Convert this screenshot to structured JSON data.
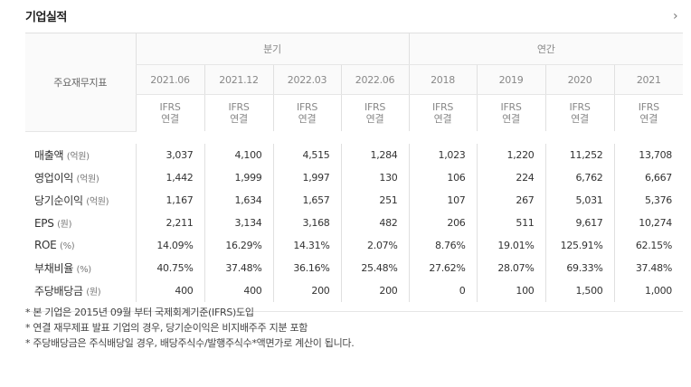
{
  "header": {
    "title": "기업실적",
    "more_icon": "chevron-right-icon"
  },
  "table": {
    "label_header": "주요재무지표",
    "groups": [
      "분기",
      "연간"
    ],
    "periods": [
      "2021.06",
      "2021.12",
      "2022.03",
      "2022.06",
      "2018",
      "2019",
      "2020",
      "2021"
    ],
    "standard_line1": "IFRS",
    "standard_line2": "연결",
    "rows": [
      {
        "label": "매출액",
        "unit": "(억원)",
        "values": [
          "3,037",
          "4,100",
          "4,515",
          "1,284",
          "1,023",
          "1,220",
          "11,252",
          "13,708"
        ]
      },
      {
        "label": "영업이익",
        "unit": "(억원)",
        "values": [
          "1,442",
          "1,999",
          "1,997",
          "130",
          "106",
          "224",
          "6,762",
          "6,667"
        ]
      },
      {
        "label": "당기순이익",
        "unit": "(억원)",
        "values": [
          "1,167",
          "1,634",
          "1,657",
          "251",
          "107",
          "267",
          "5,031",
          "5,376"
        ]
      },
      {
        "label": "EPS",
        "unit": "(원)",
        "values": [
          "2,211",
          "3,134",
          "3,168",
          "482",
          "206",
          "511",
          "9,617",
          "10,274"
        ]
      },
      {
        "label": "ROE",
        "unit": "(%)",
        "values": [
          "14.09%",
          "16.29%",
          "14.31%",
          "2.07%",
          "8.76%",
          "19.01%",
          "125.91%",
          "62.15%"
        ]
      },
      {
        "label": "부채비율",
        "unit": "(%)",
        "values": [
          "40.75%",
          "37.48%",
          "36.16%",
          "25.48%",
          "27.62%",
          "28.07%",
          "69.33%",
          "37.48%"
        ]
      },
      {
        "label": "주당배당금",
        "unit": "(원)",
        "values": [
          "400",
          "400",
          "200",
          "200",
          "0",
          "100",
          "1,500",
          "1,000"
        ]
      }
    ]
  },
  "notes": [
    "* 본 기업은 2015년 09월 부터 국제회계기준(IFRS)도입",
    "* 연결 재무제표 발표 기업의 경우, 당기순이익은 비지배주주 지분 포함",
    "* 주당배당금은 주식배당일 경우, 배당주식수/발행주식수*액면가로 계산이 됩니다."
  ]
}
